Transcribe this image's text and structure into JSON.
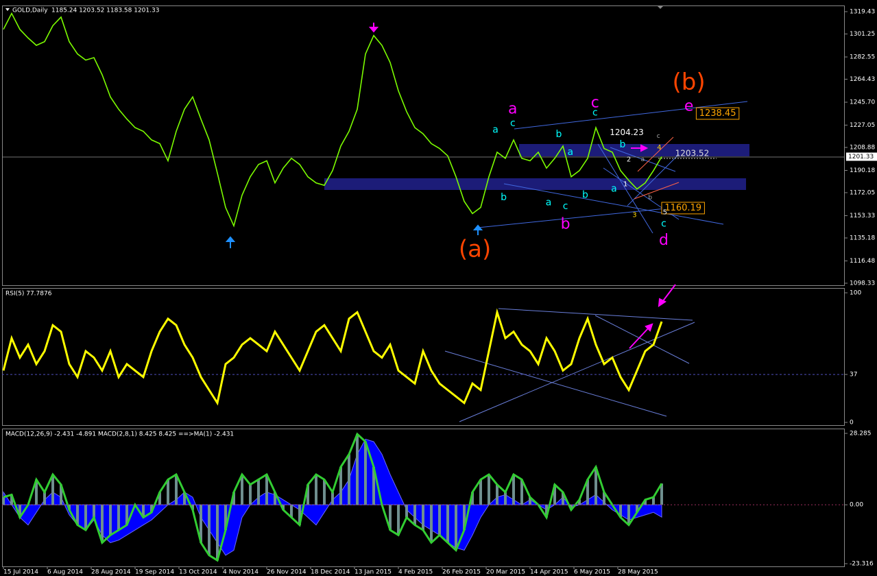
{
  "chart_data": [
    {
      "type": "line",
      "title": "GOLD,Daily",
      "subtitle": "1185.24 1203.52 1183.58 1201.33",
      "color": "#7cfc00",
      "values": [
        1305,
        1318,
        1305,
        1298,
        1292,
        1295,
        1308,
        1315,
        1295,
        1285,
        1280,
        1282,
        1268,
        1250,
        1240,
        1232,
        1225,
        1222,
        1215,
        1212,
        1198,
        1222,
        1240,
        1250,
        1232,
        1215,
        1188,
        1160,
        1145,
        1170,
        1185,
        1195,
        1198,
        1180,
        1192,
        1200,
        1195,
        1185,
        1180,
        1178,
        1190,
        1210,
        1222,
        1240,
        1285,
        1300,
        1292,
        1278,
        1255,
        1238,
        1225,
        1220,
        1212,
        1208,
        1202,
        1185,
        1165,
        1155,
        1160,
        1185,
        1205,
        1200,
        1215,
        1200,
        1198,
        1205,
        1192,
        1200,
        1210,
        1185,
        1190,
        1200,
        1225,
        1208,
        1205,
        1190,
        1182,
        1175,
        1180,
        1190,
        1201.33
      ],
      "ylim": [
        1098.33,
        1319.43
      ],
      "yticks": [
        1319.43,
        1301.25,
        1282.55,
        1264.43,
        {
          "value": 1245.7,
          "label": "1245.70"
        },
        1227.05,
        1208.88,
        1190.18,
        1172.05,
        1153.33,
        1135.18,
        1116.48,
        1098.33
      ],
      "last_price": 1201.33,
      "annotations": [
        {
          "text": "(a)",
          "color": "#ff4500",
          "size": 34,
          "x": 57.3,
          "y": 1125
        },
        {
          "text": "(b)",
          "color": "#ff4500",
          "size": 34,
          "x": 83.3,
          "y": 1261
        },
        {
          "text": "a",
          "color": "#ff00ff",
          "size": 22,
          "x": 61.9,
          "y": 1240
        },
        {
          "text": "c",
          "color": "#ff00ff",
          "size": 22,
          "x": 71.9,
          "y": 1245
        },
        {
          "text": "b",
          "color": "#ff00ff",
          "size": 22,
          "x": 68.3,
          "y": 1146
        },
        {
          "text": "d",
          "color": "#ff00ff",
          "size": 22,
          "x": 80.25,
          "y": 1133
        },
        {
          "text": "e",
          "color": "#ff00ff",
          "size": 22,
          "x": 83.3,
          "y": 1242
        },
        {
          "text": "a",
          "color": "#00ffff",
          "size": 14,
          "x": 59.8,
          "y": 1223
        },
        {
          "text": "c",
          "color": "#00ffff",
          "size": 14,
          "x": 61.9,
          "y": 1228.5
        },
        {
          "text": "b",
          "color": "#00ffff",
          "size": 14,
          "x": 60.8,
          "y": 1168
        },
        {
          "text": "b",
          "color": "#00ffff",
          "size": 14,
          "x": 67.5,
          "y": 1219.5
        },
        {
          "text": "a",
          "color": "#00ffff",
          "size": 14,
          "x": 68.9,
          "y": 1205
        },
        {
          "text": "a",
          "color": "#00ffff",
          "size": 14,
          "x": 66.25,
          "y": 1164
        },
        {
          "text": "c",
          "color": "#00ffff",
          "size": 14,
          "x": 68.3,
          "y": 1161
        },
        {
          "text": "b",
          "color": "#00ffff",
          "size": 14,
          "x": 70.7,
          "y": 1170
        },
        {
          "text": "c",
          "color": "#00ffff",
          "size": 14,
          "x": 71.9,
          "y": 1237
        },
        {
          "text": "b",
          "color": "#00ffff",
          "size": 14,
          "x": 75.25,
          "y": 1211
        },
        {
          "text": "a",
          "color": "#00ffff",
          "size": 14,
          "x": 74.2,
          "y": 1175
        },
        {
          "text": "c",
          "color": "#00ffff",
          "size": 14,
          "x": 80.25,
          "y": 1146.5
        },
        {
          "text": "1204.23",
          "color": "#ffffff",
          "size": 12,
          "x": 75.75,
          "y": 1221
        },
        {
          "text": "1203.52",
          "color": "#dddddd",
          "size": 12,
          "x": 83.7,
          "y": 1203.8
        },
        {
          "text": "1238.45",
          "color": "#ffa500",
          "size": 13,
          "box": true,
          "x": 86.8,
          "y": 1236.5
        },
        {
          "text": "1160.19",
          "color": "#ffa500",
          "size": 13,
          "box": true,
          "x": 82.6,
          "y": 1159.5
        },
        {
          "text": "1",
          "color": "#ffffff",
          "size": 10,
          "x": 75.6,
          "y": 1179
        },
        {
          "text": "2",
          "color": "#ffffff",
          "size": 10,
          "x": 76,
          "y": 1199
        },
        {
          "text": "3",
          "color": "#ffd700",
          "size": 10,
          "x": 76.7,
          "y": 1154
        },
        {
          "text": "4",
          "color": "#ffd700",
          "size": 10,
          "x": 79.7,
          "y": 1209
        },
        {
          "text": "5",
          "color": "#ffffff",
          "size": 10,
          "x": 80.4,
          "y": 1156
        },
        {
          "text": "a",
          "color": "#aaaaaa",
          "size": 9,
          "x": 77.7,
          "y": 1199
        },
        {
          "text": "b",
          "color": "#aaaaaa",
          "size": 9,
          "x": 78.6,
          "y": 1168
        },
        {
          "text": "c",
          "color": "#aaaaaa",
          "size": 9,
          "x": 79.6,
          "y": 1218
        }
      ]
    },
    {
      "type": "line",
      "title": "RSI(5) 77.7876",
      "color": "#ffff00",
      "values": [
        40,
        65,
        50,
        60,
        45,
        55,
        75,
        70,
        45,
        35,
        55,
        50,
        40,
        55,
        35,
        45,
        40,
        35,
        55,
        70,
        80,
        75,
        60,
        50,
        35,
        25,
        15,
        45,
        50,
        60,
        65,
        60,
        55,
        70,
        60,
        50,
        40,
        55,
        70,
        75,
        65,
        55,
        80,
        85,
        70,
        55,
        50,
        60,
        40,
        35,
        30,
        55,
        40,
        30,
        25,
        20,
        15,
        30,
        25,
        55,
        85,
        65,
        70,
        60,
        55,
        45,
        65,
        55,
        40,
        45,
        65,
        80,
        60,
        45,
        50,
        35,
        25,
        40,
        55,
        60,
        77.7876
      ],
      "ylim": [
        0,
        100
      ],
      "yticks": [
        0,
        37,
        100
      ],
      "level": 37
    },
    {
      "type": "macd",
      "title": "MACD(12,26,9) -2.431 -4.891  MACD(2,8,1) 8.425 8.425  ==>MA(1) -2.431",
      "series": [
        {
          "color": "#0000ff",
          "values": [
            5,
            0,
            -5,
            -8,
            -3,
            2,
            5,
            3,
            -4,
            -8,
            -10,
            -6,
            -12,
            -15,
            -14,
            -12,
            -10,
            -8,
            -6,
            -3,
            0,
            2,
            5,
            3,
            -5,
            -10,
            -15,
            -20,
            -18,
            -5,
            0,
            3,
            5,
            4,
            2,
            0,
            -2,
            -5,
            -8,
            -3,
            2,
            5,
            10,
            20,
            26,
            25,
            20,
            12,
            5,
            -2,
            -5,
            -8,
            -10,
            -12,
            -15,
            -17,
            -18,
            -12,
            -5,
            0,
            3,
            4,
            2,
            0,
            2,
            0,
            -2,
            0,
            3,
            -1,
            0,
            2,
            4,
            1,
            -2,
            -4,
            -6,
            -5,
            -4,
            -3,
            -4.891
          ]
        },
        {
          "color": "#32cd32",
          "values": [
            3,
            4,
            -5,
            0,
            10,
            5,
            12,
            8,
            -2,
            -8,
            -10,
            -5,
            -15,
            -12,
            -10,
            -8,
            0,
            -5,
            -3,
            5,
            10,
            12,
            5,
            -2,
            -15,
            -20,
            -22,
            -10,
            5,
            12,
            8,
            10,
            12,
            5,
            -2,
            -5,
            -8,
            8,
            12,
            10,
            5,
            15,
            20,
            28,
            25,
            15,
            0,
            -10,
            -12,
            -5,
            -8,
            -10,
            -15,
            -12,
            -15,
            -18,
            -10,
            5,
            10,
            12,
            8,
            5,
            12,
            10,
            3,
            0,
            -5,
            8,
            5,
            -2,
            2,
            10,
            15,
            5,
            0,
            -5,
            -8,
            -3,
            2,
            3,
            8.425
          ]
        }
      ],
      "ylim": [
        -23.316,
        28.285
      ],
      "yticks": [
        28.285,
        {
          "value": 0,
          "label": "0.00"
        },
        -23.316
      ],
      "x_labels": [
        "15 Jul 2014",
        "6 Aug 2014",
        "28 Aug 2014",
        "19 Sep 2014",
        "13 Oct 2014",
        "4 Nov 2014",
        "26 Nov 2014",
        "18 Dec 2014",
        "13 Jan 2015",
        "4 Feb 2015",
        "26 Feb 2015",
        "20 Mar 2015",
        "14 Apr 2015",
        "6 May 2015",
        "28 May 2015"
      ]
    }
  ]
}
